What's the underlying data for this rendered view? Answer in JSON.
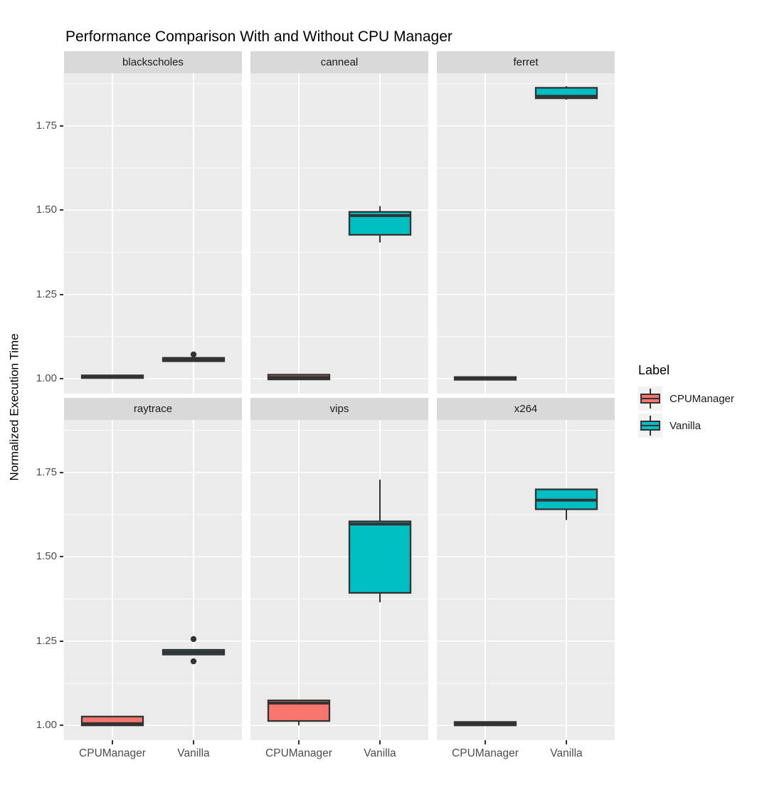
{
  "title": "Performance Comparison With and Without CPU Manager",
  "y_axis": {
    "label": "Normalized Execution Time",
    "tick_labels": [
      "1.75",
      "1.50",
      "1.25",
      "1.00"
    ]
  },
  "x_axis": {
    "tick_labels": [
      "CPUManager",
      "Vanilla"
    ]
  },
  "legend": {
    "title": "Label",
    "items": [
      {
        "label": "CPUManager",
        "color": "#F8766D"
      },
      {
        "label": "Vanilla",
        "color": "#00BFC4"
      }
    ]
  },
  "colors": {
    "panel_bg": "#EBEBEB",
    "strip_bg": "#D9D9D9",
    "grid": "#FFFFFF",
    "box_stroke": "#333333",
    "outlier": "#333333",
    "axis_text": "#4D4D4D",
    "legend_key_bg": "#F2F2F2",
    "cpumanager_fill": "#F8766D",
    "vanilla_fill": "#00BFC4"
  },
  "chart_data": {
    "type": "boxplot",
    "title": "Performance Comparison With and Without CPU Manager",
    "xlabel": "",
    "ylabel": "Normalized Execution Time",
    "categories": [
      "CPUManager",
      "Vanilla"
    ],
    "ylim": [
      0.956,
      1.906
    ],
    "y_major_ticks": [
      1.75,
      1.5,
      1.25,
      1.0
    ],
    "y_minor_ticks": [
      1.875,
      1.625,
      1.375,
      1.125
    ],
    "grid": true,
    "legend_position": "right",
    "facets": [
      {
        "name": "blackscholes",
        "boxes": [
          {
            "category": "CPUManager",
            "color": "#F8766D",
            "low": 1.002,
            "q1": 1.002,
            "median": 1.006,
            "q3": 1.01,
            "high": 1.01,
            "outliers": []
          },
          {
            "category": "Vanilla",
            "color": "#00BFC4",
            "low": 1.052,
            "q1": 1.052,
            "median": 1.057,
            "q3": 1.062,
            "high": 1.062,
            "outliers": [
              1.072
            ]
          }
        ]
      },
      {
        "name": "canneal",
        "boxes": [
          {
            "category": "CPUManager",
            "color": "#F8766D",
            "low": 0.998,
            "q1": 0.998,
            "median": 1.004,
            "q3": 1.012,
            "high": 1.012,
            "outliers": []
          },
          {
            "category": "Vanilla",
            "color": "#00BFC4",
            "low": 1.404,
            "q1": 1.427,
            "median": 1.484,
            "q3": 1.495,
            "high": 1.512,
            "outliers": []
          }
        ]
      },
      {
        "name": "ferret",
        "boxes": [
          {
            "category": "CPUManager",
            "color": "#F8766D",
            "low": 0.997,
            "q1": 0.997,
            "median": 1.001,
            "q3": 1.005,
            "high": 1.005,
            "outliers": []
          },
          {
            "category": "Vanilla",
            "color": "#00BFC4",
            "low": 1.828,
            "q1": 1.832,
            "median": 1.838,
            "q3": 1.863,
            "high": 1.868,
            "outliers": []
          }
        ]
      },
      {
        "name": "raytrace",
        "boxes": [
          {
            "category": "CPUManager",
            "color": "#F8766D",
            "low": 1.0,
            "q1": 1.0,
            "median": 1.005,
            "q3": 1.026,
            "high": 1.026,
            "outliers": []
          },
          {
            "category": "Vanilla",
            "color": "#00BFC4",
            "low": 1.21,
            "q1": 1.21,
            "median": 1.217,
            "q3": 1.224,
            "high": 1.224,
            "outliers": [
              1.256,
              1.19
            ]
          }
        ]
      },
      {
        "name": "vips",
        "boxes": [
          {
            "category": "CPUManager",
            "color": "#F8766D",
            "low": 1.0,
            "q1": 1.013,
            "median": 1.066,
            "q3": 1.074,
            "high": 1.074,
            "outliers": []
          },
          {
            "category": "Vanilla",
            "color": "#00BFC4",
            "low": 1.365,
            "q1": 1.393,
            "median": 1.597,
            "q3": 1.605,
            "high": 1.729,
            "outliers": []
          }
        ]
      },
      {
        "name": "x264",
        "boxes": [
          {
            "category": "CPUManager",
            "color": "#F8766D",
            "low": 1.0,
            "q1": 1.0,
            "median": 1.005,
            "q3": 1.01,
            "high": 1.01,
            "outliers": []
          },
          {
            "category": "Vanilla",
            "color": "#00BFC4",
            "low": 1.609,
            "q1": 1.641,
            "median": 1.668,
            "q3": 1.7,
            "high": 1.7,
            "outliers": []
          }
        ]
      }
    ]
  }
}
